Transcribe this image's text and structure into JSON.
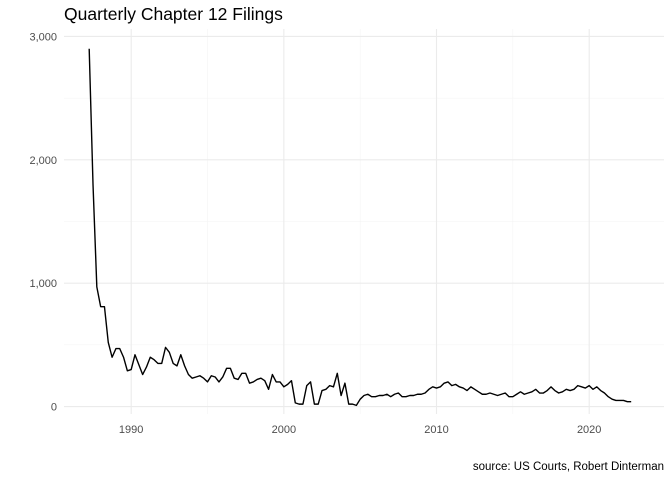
{
  "chart_data": {
    "type": "line",
    "title": "Quarterly Chapter 12 Filings",
    "caption": "source: US Courts, Robert Dinterman",
    "xlabel": "",
    "ylabel": "",
    "xlim": [
      1985.6,
      2024.9
    ],
    "ylim": [
      -60,
      3060
    ],
    "x_ticks": [
      1990,
      2000,
      2010,
      2020
    ],
    "x_tick_labels": [
      "1990",
      "2000",
      "2010",
      "2020"
    ],
    "y_ticks": [
      0,
      1000,
      2000,
      3000
    ],
    "y_tick_labels": [
      "0",
      "1,000",
      "2,000",
      "3,000"
    ],
    "grid": true,
    "legend": "none",
    "line_color": "#000000",
    "series": [
      {
        "x": [
          1987.25,
          1987.5,
          1987.75,
          1988.0,
          1988.25,
          1988.5,
          1988.75,
          1989.0,
          1989.25,
          1989.5,
          1989.75,
          1990.0,
          1990.25,
          1990.5,
          1990.75,
          1991.0,
          1991.25,
          1991.5,
          1991.75,
          1992.0,
          1992.25,
          1992.5,
          1992.75,
          1993.0,
          1993.25,
          1993.5,
          1993.75,
          1994.0,
          1994.25,
          1994.5,
          1994.75,
          1995.0,
          1995.25,
          1995.5,
          1995.75,
          1996.0,
          1996.25,
          1996.5,
          1996.75,
          1997.0,
          1997.25,
          1997.5,
          1997.75,
          1998.0,
          1998.25,
          1998.5,
          1998.75,
          1999.0,
          1999.25,
          1999.5,
          1999.75,
          2000.0,
          2000.25,
          2000.5,
          2000.75,
          2001.0,
          2001.25,
          2001.5,
          2001.75,
          2002.0,
          2002.25,
          2002.5,
          2002.75,
          2003.0,
          2003.25,
          2003.5,
          2003.75,
          2004.0,
          2004.25,
          2004.5,
          2004.75,
          2005.0,
          2005.25,
          2005.5,
          2005.75,
          2006.0,
          2006.25,
          2006.5,
          2006.75,
          2007.0,
          2007.25,
          2007.5,
          2007.75,
          2008.0,
          2008.25,
          2008.5,
          2008.75,
          2009.0,
          2009.25,
          2009.5,
          2009.75,
          2010.0,
          2010.25,
          2010.5,
          2010.75,
          2011.0,
          2011.25,
          2011.5,
          2011.75,
          2012.0,
          2012.25,
          2012.5,
          2012.75,
          2013.0,
          2013.25,
          2013.5,
          2013.75,
          2014.0,
          2014.25,
          2014.5,
          2014.75,
          2015.0,
          2015.25,
          2015.5,
          2015.75,
          2016.0,
          2016.25,
          2016.5,
          2016.75,
          2017.0,
          2017.25,
          2017.5,
          2017.75,
          2018.0,
          2018.25,
          2018.5,
          2018.75,
          2019.0,
          2019.25,
          2019.5,
          2019.75,
          2020.0,
          2020.25,
          2020.5,
          2020.75,
          2021.0,
          2021.25,
          2021.5,
          2021.75,
          2022.0,
          2022.25,
          2022.5,
          2022.75
        ],
        "values": [
          2900,
          1800,
          970,
          810,
          810,
          520,
          400,
          470,
          470,
          400,
          290,
          300,
          420,
          340,
          260,
          320,
          400,
          380,
          350,
          350,
          480,
          440,
          350,
          330,
          420,
          330,
          260,
          230,
          240,
          250,
          230,
          200,
          250,
          240,
          200,
          240,
          310,
          310,
          230,
          220,
          270,
          270,
          190,
          200,
          220,
          230,
          210,
          140,
          260,
          200,
          200,
          160,
          180,
          210,
          30,
          20,
          20,
          170,
          200,
          20,
          20,
          130,
          140,
          170,
          160,
          270,
          90,
          190,
          20,
          20,
          10,
          60,
          90,
          100,
          80,
          80,
          90,
          90,
          100,
          80,
          100,
          110,
          80,
          80,
          90,
          90,
          100,
          100,
          110,
          140,
          160,
          150,
          160,
          190,
          200,
          170,
          180,
          160,
          150,
          130,
          160,
          140,
          120,
          100,
          100,
          110,
          100,
          90,
          100,
          110,
          80,
          80,
          100,
          120,
          100,
          110,
          120,
          140,
          110,
          110,
          130,
          160,
          130,
          110,
          120,
          140,
          130,
          140,
          170,
          160,
          150,
          170,
          140,
          160,
          130,
          110,
          80,
          60,
          50,
          50,
          50,
          40,
          40
        ]
      }
    ]
  }
}
